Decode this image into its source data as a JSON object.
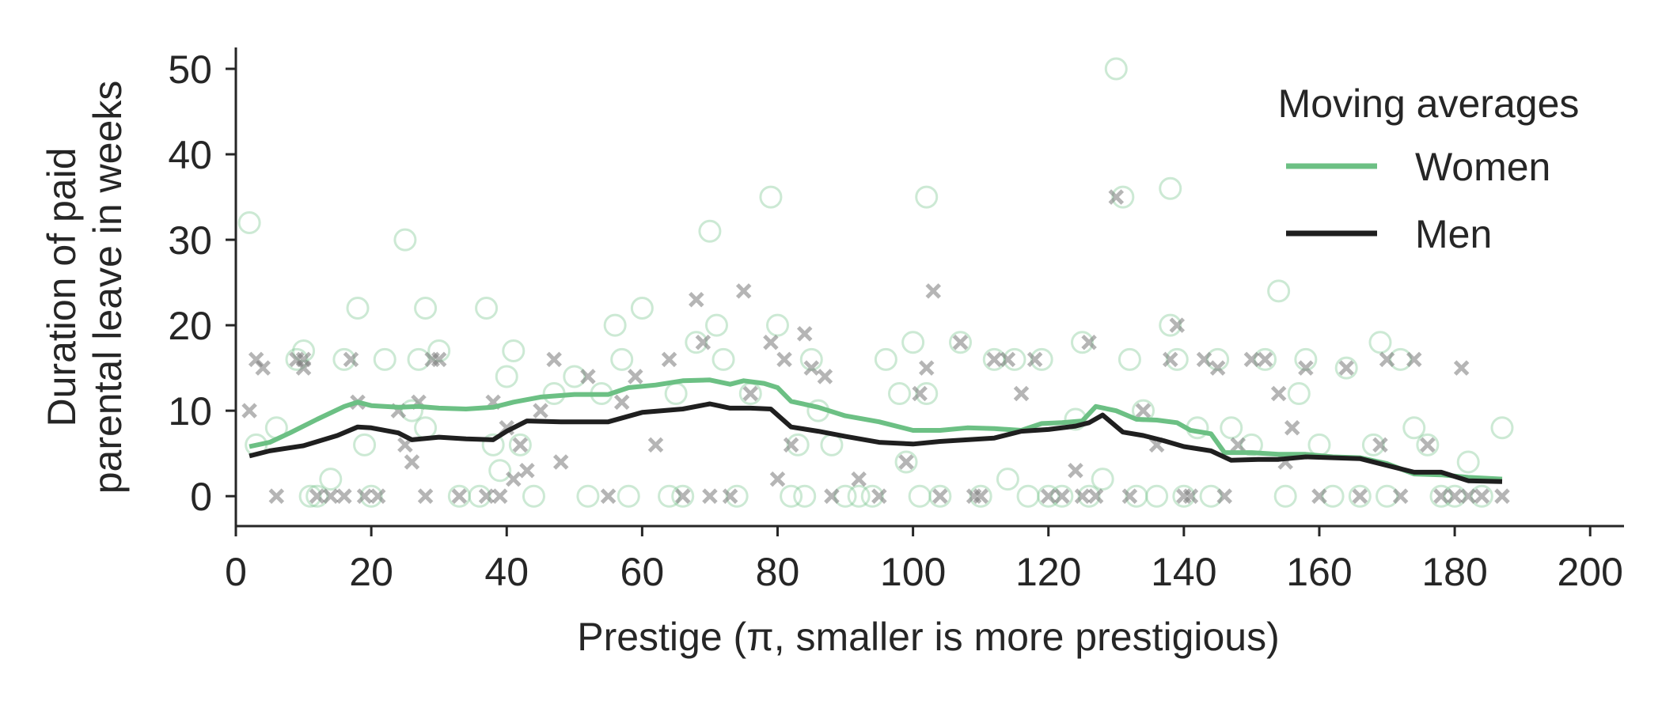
{
  "chart_data": {
    "type": "scatter",
    "ylabel_lines": [
      "Duration of paid",
      "parental leave in weeks"
    ],
    "xlabel": "Prestige (π, smaller is more prestigious)",
    "xlim": [
      0,
      205
    ],
    "ylim": [
      -3.5,
      52.5
    ],
    "xticks": [
      0,
      20,
      40,
      60,
      80,
      100,
      120,
      140,
      160,
      180,
      200
    ],
    "yticks": [
      0,
      10,
      20,
      30,
      40,
      50
    ],
    "grid": false,
    "legend": {
      "title": "Moving averages",
      "placement": "top-right",
      "entries": [
        "Women",
        "Men"
      ]
    },
    "colors": {
      "women": "#6cc084",
      "men": "#1f1f1f",
      "women_marker": "#6cc084",
      "men_marker": "#7a7a7a"
    },
    "series": [
      {
        "name": "Women",
        "kind": "line",
        "x": [
          2,
          5,
          8,
          12,
          16,
          18,
          20,
          24,
          27,
          30,
          34,
          38,
          41,
          45,
          50,
          55,
          58,
          62,
          66,
          70,
          73,
          75,
          78,
          80,
          82,
          86,
          90,
          95,
          100,
          104,
          108,
          112,
          116,
          119,
          122,
          125,
          127,
          130,
          133,
          136,
          139,
          141,
          144,
          146,
          150,
          154,
          158,
          162,
          166,
          170,
          174,
          178,
          182,
          187
        ],
        "y": [
          5.8,
          6.3,
          7.4,
          9.0,
          10.5,
          11.0,
          10.6,
          10.4,
          10.5,
          10.3,
          10.2,
          10.4,
          11.0,
          11.6,
          11.9,
          11.9,
          12.7,
          13.0,
          13.5,
          13.6,
          13.1,
          13.5,
          13.2,
          12.7,
          11.1,
          10.4,
          9.4,
          8.7,
          7.7,
          7.7,
          8.0,
          7.9,
          7.7,
          8.5,
          8.6,
          8.8,
          10.5,
          10.0,
          9.0,
          8.9,
          8.6,
          7.7,
          7.3,
          5.1,
          5.1,
          4.9,
          4.9,
          4.6,
          4.5,
          3.8,
          2.6,
          2.5,
          2.2,
          2.0
        ]
      },
      {
        "name": "Men",
        "kind": "line",
        "x": [
          2,
          5,
          10,
          15,
          18,
          20,
          24,
          26,
          30,
          34,
          38,
          40,
          43,
          48,
          55,
          60,
          66,
          70,
          73,
          76,
          79,
          82,
          86,
          90,
          95,
          100,
          104,
          108,
          112,
          116,
          120,
          124,
          126,
          128,
          131,
          134,
          137,
          140,
          144,
          147,
          151,
          154,
          158,
          162,
          166,
          170,
          174,
          178,
          182,
          187
        ],
        "y": [
          4.7,
          5.3,
          5.9,
          7.1,
          8.1,
          8.0,
          7.4,
          6.6,
          6.9,
          6.7,
          6.6,
          7.6,
          8.8,
          8.7,
          8.7,
          9.8,
          10.2,
          10.8,
          10.3,
          10.3,
          10.2,
          8.1,
          7.6,
          7.0,
          6.3,
          6.1,
          6.4,
          6.6,
          6.8,
          7.6,
          7.8,
          8.2,
          8.6,
          9.5,
          7.5,
          7.1,
          6.5,
          5.8,
          5.3,
          4.2,
          4.3,
          4.3,
          4.6,
          4.5,
          4.4,
          3.6,
          2.8,
          2.8,
          1.8,
          1.7
        ]
      },
      {
        "name": "Women",
        "kind": "points",
        "x": [
          2,
          3,
          6,
          9,
          10,
          11,
          12,
          14,
          16,
          18,
          19,
          20,
          22,
          25,
          26,
          27,
          28,
          28,
          30,
          33,
          36,
          37,
          38,
          39,
          40,
          41,
          42,
          44,
          47,
          50,
          52,
          54,
          56,
          57,
          58,
          60,
          64,
          65,
          66,
          68,
          70,
          71,
          72,
          74,
          76,
          79,
          80,
          82,
          83,
          84,
          85,
          86,
          88,
          90,
          92,
          94,
          96,
          98,
          99,
          100,
          101,
          102,
          102,
          104,
          107,
          110,
          112,
          114,
          115,
          117,
          119,
          120,
          122,
          124,
          125,
          126,
          128,
          130,
          131,
          132,
          133,
          134,
          136,
          138,
          138,
          139,
          140,
          142,
          144,
          145,
          147,
          150,
          152,
          154,
          155,
          157,
          158,
          160,
          162,
          164,
          166,
          168,
          169,
          170,
          172,
          174,
          176,
          178,
          180,
          182,
          184,
          187
        ],
        "y": [
          32,
          6,
          8,
          16,
          17,
          0,
          0,
          2,
          16,
          22,
          6,
          0,
          16,
          30,
          10,
          16,
          22,
          8,
          17,
          0,
          0,
          22,
          6,
          3,
          14,
          17,
          6,
          0,
          12,
          14,
          0,
          12,
          20,
          16,
          0,
          22,
          0,
          12,
          0,
          18,
          31,
          20,
          16,
          0,
          12,
          35,
          20,
          0,
          6,
          0,
          16,
          10,
          6,
          0,
          0,
          0,
          16,
          12,
          4,
          18,
          0,
          35,
          12,
          0,
          18,
          0,
          16,
          2,
          16,
          0,
          16,
          0,
          0,
          9,
          18,
          0,
          2,
          50,
          35,
          16,
          0,
          10,
          0,
          20,
          36,
          16,
          0,
          8,
          0,
          16,
          8,
          6,
          16,
          24,
          0,
          12,
          16,
          6,
          0,
          15,
          0,
          6,
          18,
          0,
          16,
          8,
          6,
          0,
          0,
          4,
          0,
          8
        ]
      },
      {
        "name": "Men",
        "kind": "points",
        "x": [
          2,
          3,
          4,
          6,
          9,
          10,
          10,
          12,
          14,
          16,
          17,
          18,
          19,
          21,
          24,
          25,
          26,
          27,
          28,
          29,
          30,
          33,
          37,
          38,
          39,
          40,
          41,
          42,
          43,
          45,
          47,
          48,
          52,
          55,
          57,
          59,
          62,
          64,
          66,
          68,
          69,
          70,
          73,
          75,
          76,
          79,
          80,
          81,
          82,
          84,
          85,
          87,
          88,
          92,
          95,
          99,
          101,
          102,
          103,
          104,
          107,
          109,
          110,
          112,
          114,
          116,
          118,
          120,
          122,
          124,
          125,
          126,
          127,
          130,
          132,
          134,
          136,
          138,
          139,
          140,
          141,
          143,
          145,
          146,
          148,
          150,
          152,
          154,
          155,
          156,
          158,
          160,
          164,
          166,
          169,
          170,
          172,
          174,
          176,
          178,
          180,
          181,
          182,
          184,
          187
        ],
        "y": [
          10,
          16,
          15,
          0,
          16,
          15,
          16,
          0,
          0,
          0,
          16,
          11,
          0,
          0,
          10,
          6,
          4,
          11,
          0,
          16,
          16,
          0,
          0,
          11,
          0,
          8,
          2,
          6,
          3,
          10,
          16,
          4,
          14,
          0,
          11,
          14,
          6,
          16,
          0,
          23,
          18,
          0,
          0,
          24,
          12,
          18,
          2,
          16,
          6,
          19,
          15,
          14,
          0,
          2,
          0,
          4,
          12,
          15,
          24,
          0,
          18,
          0,
          0,
          16,
          16,
          12,
          16,
          0,
          0,
          3,
          0,
          18,
          0,
          35,
          0,
          10,
          6,
          16,
          20,
          0,
          0,
          16,
          15,
          0,
          6,
          16,
          16,
          12,
          4,
          8,
          15,
          0,
          15,
          0,
          6,
          16,
          0,
          16,
          6,
          0,
          0,
          15,
          0,
          0,
          0
        ]
      }
    ]
  }
}
